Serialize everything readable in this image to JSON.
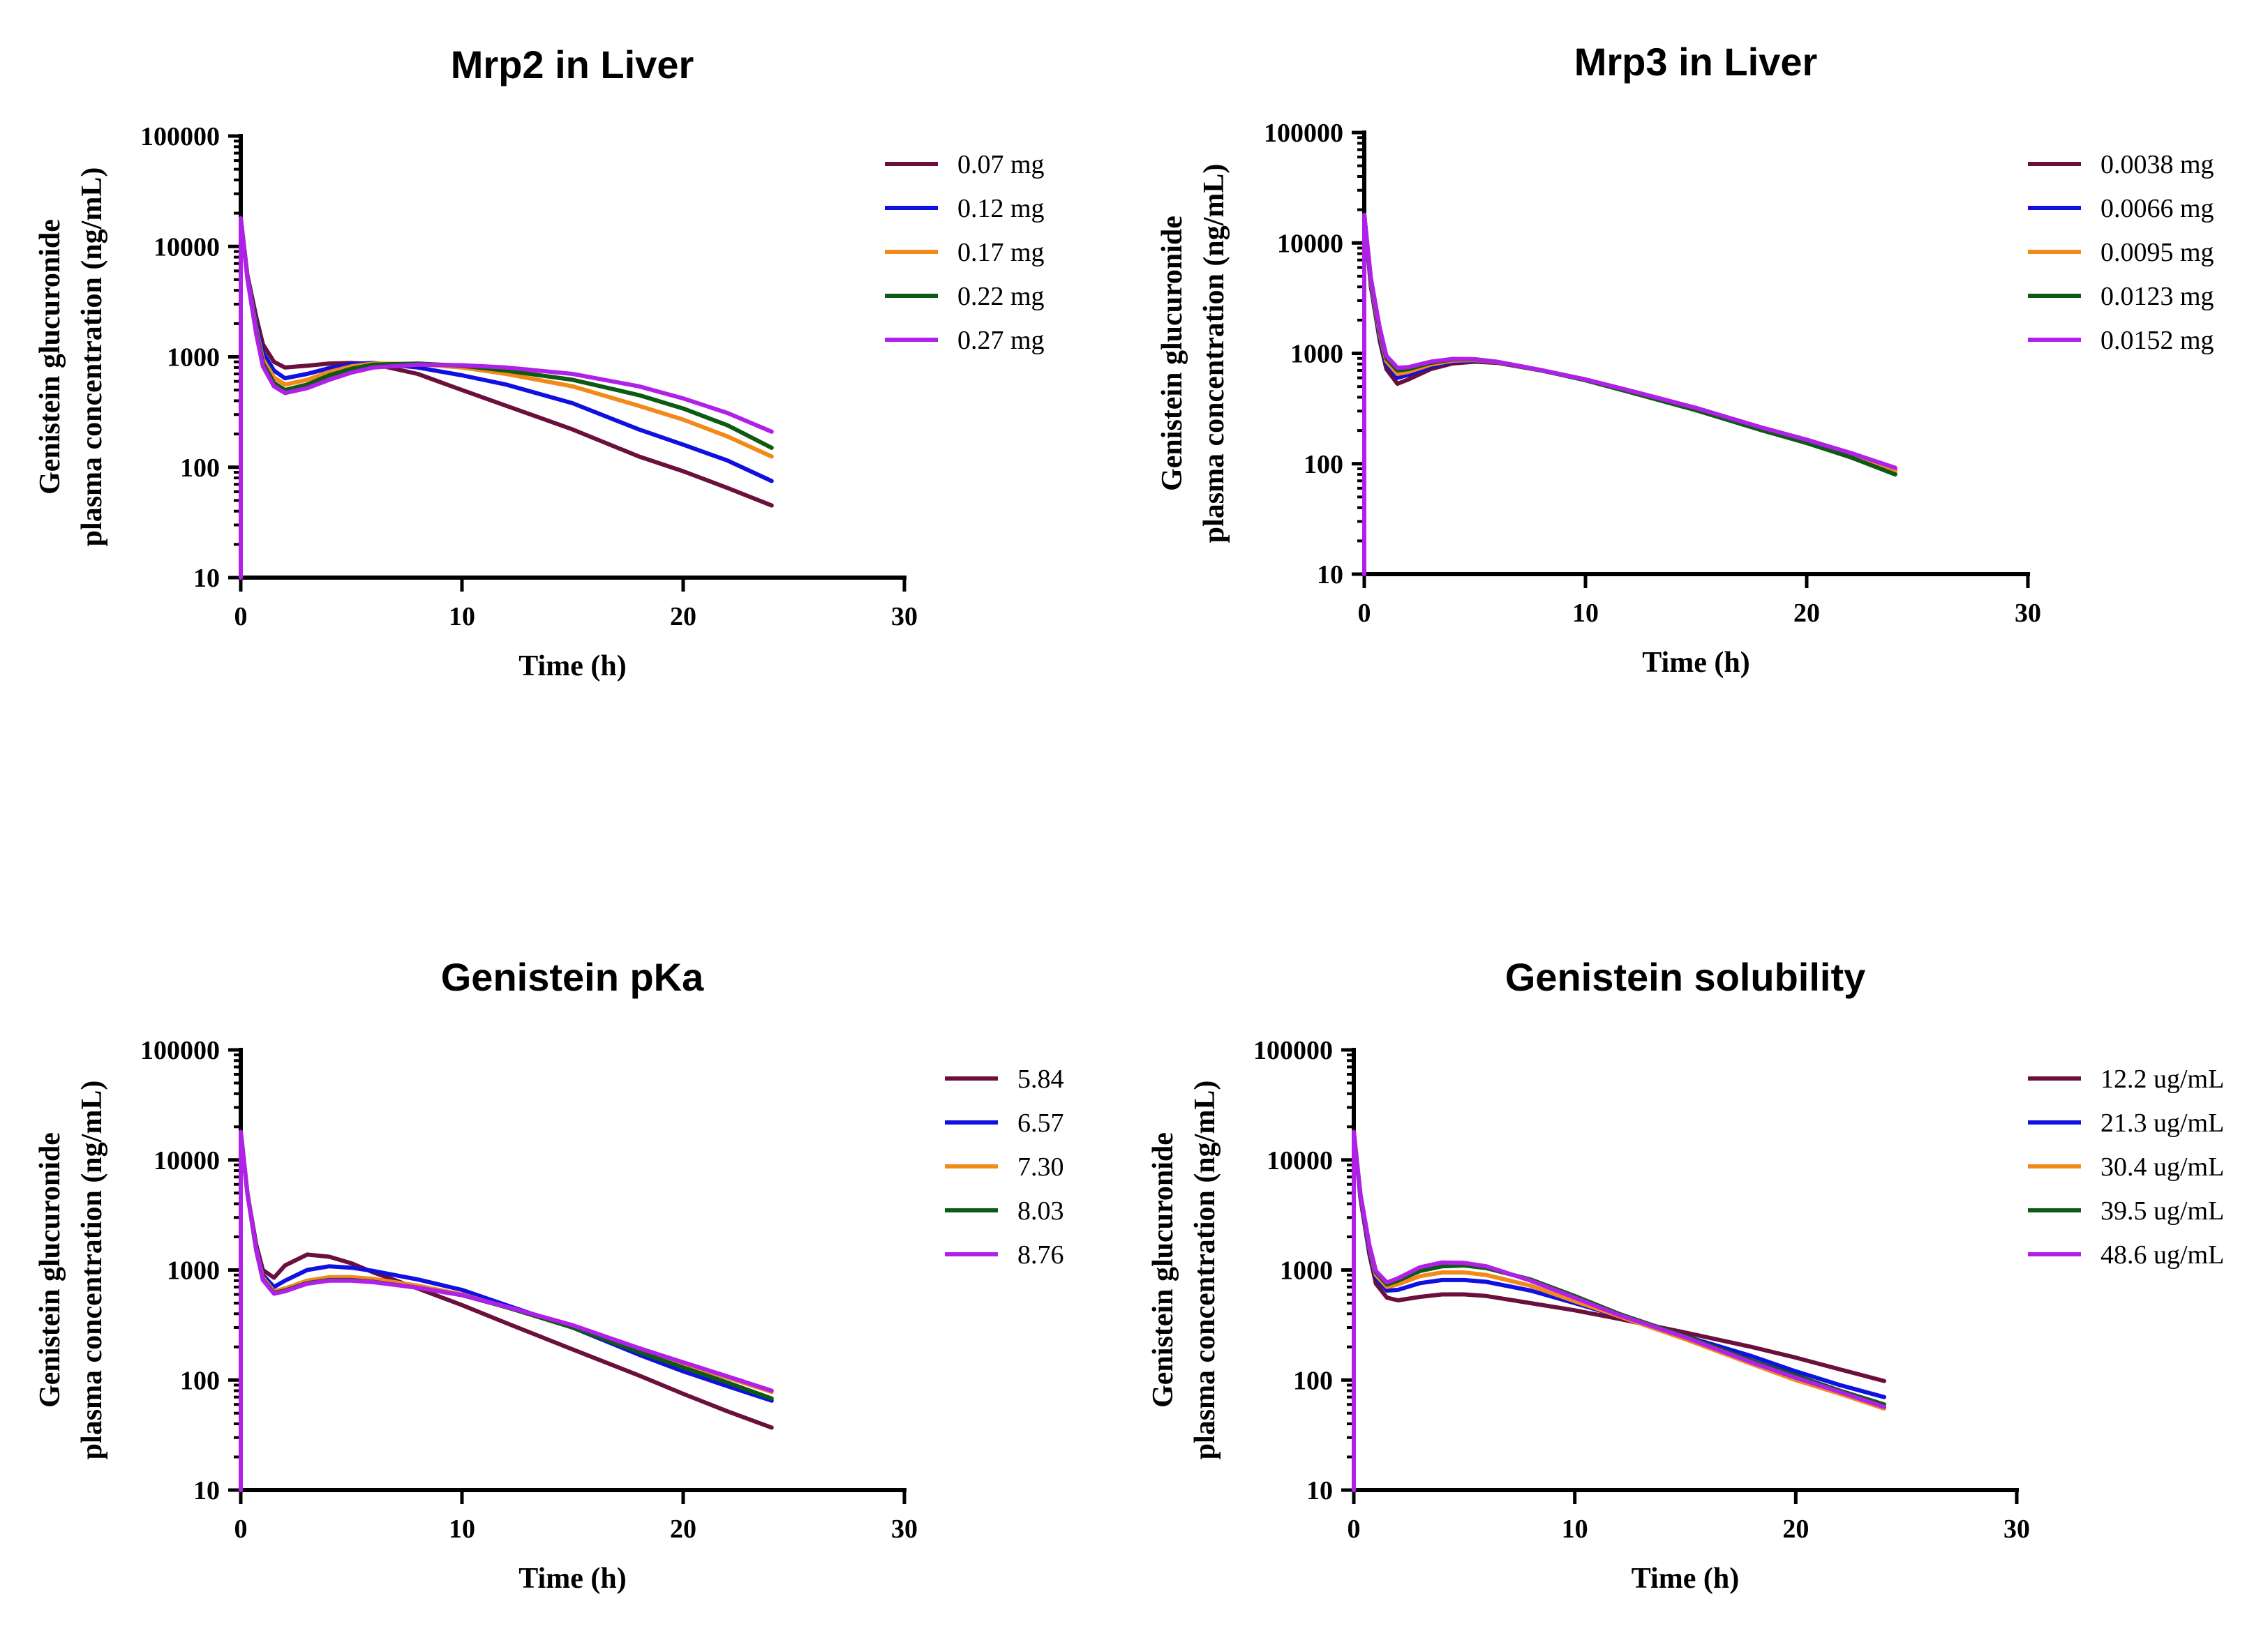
{
  "chart_data": [
    {
      "type": "line",
      "title": "Mrp2 in Liver",
      "xlabel": "Time (h)",
      "ylabel": [
        "Genistein glucuronide",
        "plasma concentration (ng/mL)"
      ],
      "xlim": [
        0,
        30
      ],
      "ylim": [
        10,
        100000
      ],
      "yscale": "log",
      "xticks": [
        "0",
        "10",
        "20",
        "30"
      ],
      "yticks": [
        "10",
        "100",
        "1000",
        "10000",
        "100000"
      ],
      "legend": "top-right",
      "series": [
        {
          "name": "0.07 mg",
          "color": "#6b0f3c",
          "x": [
            0,
            0.3,
            0.7,
            1,
            1.5,
            2,
            3,
            4,
            5,
            6,
            8,
            10,
            12,
            15,
            18,
            20,
            22,
            24
          ],
          "y": [
            18000,
            5500,
            2300,
            1300,
            900,
            800,
            830,
            870,
            880,
            860,
            700,
            500,
            360,
            220,
            125,
            92,
            65,
            45
          ]
        },
        {
          "name": "0.12 mg",
          "color": "#1010e0",
          "x": [
            0,
            0.3,
            0.7,
            1,
            1.5,
            2,
            3,
            4,
            5,
            6,
            8,
            10,
            12,
            15,
            18,
            20,
            22,
            24
          ],
          "y": [
            18000,
            5400,
            2000,
            1100,
            750,
            640,
            700,
            790,
            860,
            880,
            800,
            680,
            560,
            380,
            220,
            160,
            115,
            75
          ]
        },
        {
          "name": "0.17 mg",
          "color": "#f28a1a",
          "x": [
            0,
            0.3,
            0.7,
            1,
            1.5,
            2,
            3,
            4,
            5,
            6,
            8,
            10,
            12,
            15,
            18,
            20,
            22,
            24
          ],
          "y": [
            18000,
            5300,
            1800,
            950,
            650,
            560,
            620,
            730,
            820,
            870,
            860,
            800,
            700,
            540,
            360,
            270,
            190,
            125
          ]
        },
        {
          "name": "0.22 mg",
          "color": "#0d5a14",
          "x": [
            0,
            0.3,
            0.7,
            1,
            1.5,
            2,
            3,
            4,
            5,
            6,
            8,
            10,
            12,
            15,
            18,
            20,
            22,
            24
          ],
          "y": [
            18000,
            5200,
            1700,
            880,
            580,
            500,
            560,
            680,
            780,
            850,
            870,
            830,
            750,
            620,
            450,
            340,
            240,
            150
          ]
        },
        {
          "name": "0.27 mg",
          "color": "#b020e8",
          "x": [
            0,
            0.3,
            0.7,
            1,
            1.5,
            2,
            3,
            4,
            5,
            6,
            8,
            10,
            12,
            15,
            18,
            20,
            22,
            24
          ],
          "y": [
            18000,
            5100,
            1600,
            820,
            540,
            470,
            520,
            620,
            720,
            800,
            850,
            840,
            800,
            700,
            540,
            420,
            310,
            210
          ]
        }
      ]
    },
    {
      "type": "line",
      "title": "Mrp3 in Liver",
      "xlabel": "Time (h)",
      "ylabel": [
        "Genistein glucuronide",
        "plasma concentration (ng/mL)"
      ],
      "xlim": [
        0,
        30
      ],
      "ylim": [
        10,
        100000
      ],
      "yscale": "log",
      "xticks": [
        "0",
        "10",
        "20",
        "30"
      ],
      "yticks": [
        "10",
        "100",
        "1000",
        "10000",
        "100000"
      ],
      "legend": "top-right",
      "series": [
        {
          "name": "0.0038 mg",
          "color": "#6b0f3c",
          "x": [
            0,
            0.3,
            0.7,
            1,
            1.5,
            2,
            3,
            4,
            5,
            6,
            8,
            10,
            12,
            15,
            18,
            20,
            22,
            24
          ],
          "y": [
            18000,
            4000,
            1300,
            720,
            530,
            580,
            720,
            810,
            840,
            820,
            700,
            580,
            460,
            320,
            210,
            160,
            120,
            88
          ]
        },
        {
          "name": "0.0066 mg",
          "color": "#1010e0",
          "x": [
            0,
            0.3,
            0.7,
            1,
            1.5,
            2,
            3,
            4,
            5,
            6,
            8,
            10,
            12,
            15,
            18,
            20,
            22,
            24
          ],
          "y": [
            18000,
            4200,
            1400,
            800,
            600,
            640,
            760,
            840,
            860,
            830,
            700,
            580,
            455,
            315,
            205,
            155,
            115,
            82
          ]
        },
        {
          "name": "0.0095 mg",
          "color": "#f28a1a",
          "x": [
            0,
            0.3,
            0.7,
            1,
            1.5,
            2,
            3,
            4,
            5,
            6,
            8,
            10,
            12,
            15,
            18,
            20,
            22,
            24
          ],
          "y": [
            18000,
            4400,
            1500,
            850,
            650,
            680,
            790,
            860,
            870,
            830,
            700,
            575,
            450,
            310,
            205,
            158,
            118,
            85
          ]
        },
        {
          "name": "0.0123 mg",
          "color": "#0d5a14",
          "x": [
            0,
            0.3,
            0.7,
            1,
            1.5,
            2,
            3,
            4,
            5,
            6,
            8,
            10,
            12,
            15,
            18,
            20,
            22,
            24
          ],
          "y": [
            18000,
            4600,
            1600,
            900,
            700,
            720,
            820,
            880,
            880,
            835,
            700,
            570,
            445,
            305,
            200,
            154,
            114,
            80
          ]
        },
        {
          "name": "0.0152 mg",
          "color": "#b020e8",
          "x": [
            0,
            0.3,
            0.7,
            1,
            1.5,
            2,
            3,
            4,
            5,
            6,
            8,
            10,
            12,
            15,
            18,
            20,
            22,
            24
          ],
          "y": [
            18000,
            4800,
            1700,
            950,
            740,
            750,
            840,
            890,
            885,
            840,
            705,
            580,
            460,
            320,
            212,
            165,
            125,
            92
          ]
        }
      ]
    },
    {
      "type": "line",
      "title": "Genistein pKa",
      "xlabel": "Time (h)",
      "ylabel": [
        "Genistein glucuronide",
        "plasma concentration (ng/mL)"
      ],
      "xlim": [
        0,
        30
      ],
      "ylim": [
        10,
        100000
      ],
      "yscale": "log",
      "xticks": [
        "0",
        "10",
        "20",
        "30"
      ],
      "yticks": [
        "10",
        "100",
        "1000",
        "10000",
        "100000"
      ],
      "legend": "top-right",
      "series": [
        {
          "name": "5.84",
          "color": "#6b0f3c",
          "x": [
            0,
            0.3,
            0.7,
            1,
            1.5,
            2,
            3,
            4,
            5,
            6,
            8,
            10,
            12,
            15,
            18,
            20,
            22,
            24
          ],
          "y": [
            18000,
            5000,
            1700,
            1000,
            850,
            1100,
            1380,
            1320,
            1150,
            950,
            680,
            480,
            330,
            190,
            110,
            75,
            52,
            37
          ]
        },
        {
          "name": "6.57",
          "color": "#1010e0",
          "x": [
            0,
            0.3,
            0.7,
            1,
            1.5,
            2,
            3,
            4,
            5,
            6,
            8,
            10,
            12,
            15,
            18,
            20,
            22,
            24
          ],
          "y": [
            18000,
            5000,
            1600,
            900,
            700,
            800,
            1000,
            1080,
            1050,
            980,
            820,
            660,
            480,
            300,
            170,
            120,
            88,
            65
          ]
        },
        {
          "name": "7.30",
          "color": "#f28a1a",
          "x": [
            0,
            0.3,
            0.7,
            1,
            1.5,
            2,
            3,
            4,
            5,
            6,
            8,
            10,
            12,
            15,
            18,
            20,
            22,
            24
          ],
          "y": [
            18000,
            5000,
            1550,
            850,
            640,
            680,
            800,
            860,
            860,
            830,
            720,
            600,
            460,
            310,
            190,
            140,
            105,
            78
          ]
        },
        {
          "name": "8.03",
          "color": "#0d5a14",
          "x": [
            0,
            0.3,
            0.7,
            1,
            1.5,
            2,
            3,
            4,
            5,
            6,
            8,
            10,
            12,
            15,
            18,
            20,
            22,
            24
          ],
          "y": [
            18000,
            5000,
            1500,
            820,
            620,
            650,
            760,
            810,
            810,
            780,
            690,
            590,
            460,
            300,
            180,
            130,
            95,
            68
          ]
        },
        {
          "name": "8.76",
          "color": "#b020e8",
          "x": [
            0,
            0.3,
            0.7,
            1,
            1.5,
            2,
            3,
            4,
            5,
            6,
            8,
            10,
            12,
            15,
            18,
            20,
            22,
            24
          ],
          "y": [
            18000,
            5000,
            1500,
            810,
            610,
            640,
            750,
            800,
            800,
            775,
            690,
            590,
            465,
            315,
            195,
            145,
            108,
            80
          ]
        }
      ]
    },
    {
      "type": "line",
      "title": "Genistein solubility",
      "xlabel": "Time (h)",
      "ylabel": [
        "Genistein glucuronide",
        "plasma concentration (ng/mL)"
      ],
      "xlim": [
        0,
        30
      ],
      "ylim": [
        10,
        100000
      ],
      "yscale": "log",
      "xticks": [
        "0",
        "10",
        "20",
        "30"
      ],
      "yticks": [
        "10",
        "100",
        "1000",
        "10000",
        "100000"
      ],
      "legend": "top-right",
      "series": [
        {
          "name": "12.2 ug/mL",
          "color": "#6b0f3c",
          "x": [
            0,
            0.3,
            0.7,
            1,
            1.5,
            2,
            3,
            4,
            5,
            6,
            8,
            10,
            12,
            15,
            18,
            20,
            22,
            24
          ],
          "y": [
            18000,
            4500,
            1400,
            750,
            560,
            530,
            570,
            600,
            600,
            580,
            500,
            430,
            360,
            270,
            200,
            160,
            125,
            98
          ]
        },
        {
          "name": "21.3 ug/mL",
          "color": "#1010e0",
          "x": [
            0,
            0.3,
            0.7,
            1,
            1.5,
            2,
            3,
            4,
            5,
            6,
            8,
            10,
            12,
            15,
            18,
            20,
            22,
            24
          ],
          "y": [
            18000,
            4700,
            1500,
            850,
            650,
            660,
            760,
            810,
            810,
            780,
            650,
            500,
            380,
            250,
            165,
            120,
            90,
            70
          ]
        },
        {
          "name": "30.4 ug/mL",
          "color": "#f28a1a",
          "x": [
            0,
            0.3,
            0.7,
            1,
            1.5,
            2,
            3,
            4,
            5,
            6,
            8,
            10,
            12,
            15,
            18,
            20,
            22,
            24
          ],
          "y": [
            18000,
            4800,
            1600,
            900,
            700,
            740,
            880,
            950,
            950,
            900,
            720,
            520,
            380,
            235,
            140,
            100,
            75,
            55
          ]
        },
        {
          "name": "39.5 ug/mL",
          "color": "#0d5a14",
          "x": [
            0,
            0.3,
            0.7,
            1,
            1.5,
            2,
            3,
            4,
            5,
            6,
            8,
            10,
            12,
            15,
            18,
            20,
            22,
            24
          ],
          "y": [
            18000,
            4800,
            1650,
            950,
            740,
            800,
            980,
            1080,
            1100,
            1040,
            820,
            580,
            400,
            250,
            150,
            110,
            80,
            60
          ]
        },
        {
          "name": "48.6 ug/mL",
          "color": "#b020e8",
          "x": [
            0,
            0.3,
            0.7,
            1,
            1.5,
            2,
            3,
            4,
            5,
            6,
            8,
            10,
            12,
            15,
            18,
            20,
            22,
            24
          ],
          "y": [
            18000,
            4900,
            1700,
            980,
            770,
            840,
            1060,
            1170,
            1160,
            1080,
            800,
            560,
            390,
            245,
            145,
            105,
            78,
            57
          ]
        }
      ]
    }
  ]
}
